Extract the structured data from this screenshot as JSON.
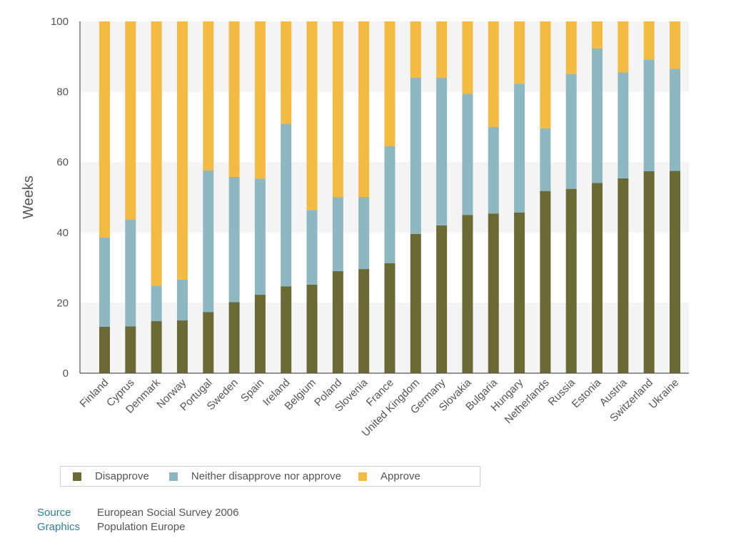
{
  "chart_data": {
    "type": "bar",
    "stacked": true,
    "ylabel": "Weeks",
    "xlabel": "",
    "ylim": [
      0,
      100
    ],
    "yticks": [
      0,
      20,
      40,
      60,
      80,
      100
    ],
    "categories": [
      "Finland",
      "Cyprus",
      "Denmark",
      "Norway",
      "Portugal",
      "Sweden",
      "Spain",
      "Ireland",
      "Belgium",
      "Poland",
      "Slovenia",
      "France",
      "United Kingdom",
      "Germany",
      "Slovakia",
      "Bulgaria",
      "Hungary",
      "Netherlands",
      "Russia",
      "Estonia",
      "Austria",
      "Switzerland",
      "Ukraine"
    ],
    "series": [
      {
        "name": "Disapprove",
        "color": "#6b6a34",
        "values": [
          13.2,
          13.3,
          14.8,
          15.0,
          17.4,
          20.2,
          22.3,
          24.7,
          25.2,
          29.0,
          29.6,
          31.3,
          39.6,
          42.0,
          45.0,
          45.4,
          45.7,
          51.8,
          52.4,
          54.1,
          55.4,
          57.4,
          57.5
        ]
      },
      {
        "name": "Neither disapprove nor approve",
        "color": "#8db7c1",
        "values": [
          25.4,
          30.4,
          10.1,
          11.6,
          40.2,
          35.6,
          33.0,
          46.2,
          21.2,
          21.0,
          20.5,
          33.2,
          44.4,
          42.0,
          34.4,
          24.6,
          36.6,
          17.8,
          32.6,
          38.2,
          30.1,
          31.8,
          29.0
        ]
      },
      {
        "name": "Approve",
        "color": "#f3bb42",
        "values": [
          61.4,
          56.3,
          75.1,
          73.4,
          42.4,
          44.2,
          44.7,
          29.1,
          53.6,
          50.0,
          49.9,
          35.5,
          16.0,
          16.0,
          20.6,
          30.0,
          17.7,
          30.4,
          15.0,
          7.7,
          14.5,
          10.8,
          13.5
        ]
      }
    ],
    "grid": "alternating horizontal bands",
    "legend_position": "bottom"
  },
  "credits": [
    {
      "key": "Source",
      "value": "European Social Survey 2006"
    },
    {
      "key": "Graphics",
      "value": "Population Europe"
    }
  ],
  "colors": {
    "band": "#f4f4f4",
    "axis": "#555555",
    "credit_key": "#2f7f9a"
  }
}
